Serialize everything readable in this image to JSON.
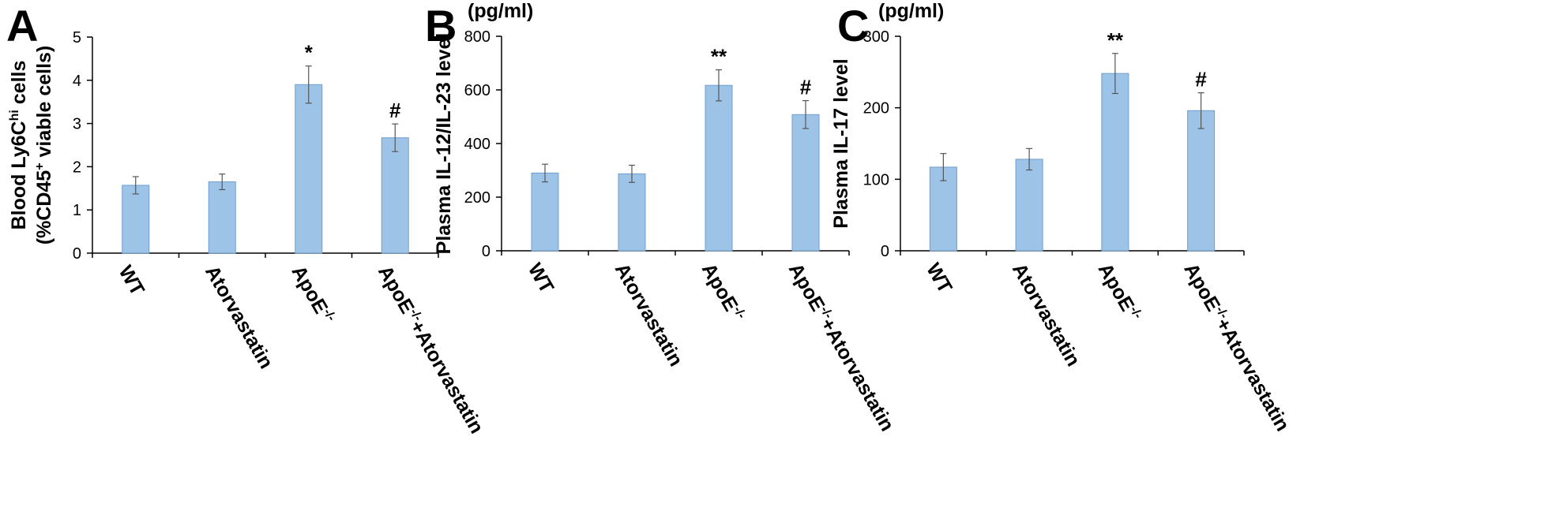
{
  "chart_data": [
    {
      "type": "bar",
      "panel": "A",
      "ylabel_line1": "Blood Ly6C",
      "ylabel_sup1": "hi",
      "ylabel_line1_end": " cells",
      "ylabel_line2": "(%CD45",
      "ylabel_sup2": "+",
      "ylabel_line2_end": " viable cells)",
      "unit": "",
      "ylim": [
        0,
        5
      ],
      "yticks": [
        "0",
        "1",
        "2",
        "3",
        "4",
        "5"
      ],
      "categories": [
        "WT",
        "Atorvastatin",
        "ApoE-/-",
        "ApoE-/-+Atorvastatin"
      ],
      "category_parts": [
        {
          "a": "WT",
          "s": "",
          "b": ""
        },
        {
          "a": "Atorvastatin",
          "s": "",
          "b": ""
        },
        {
          "a": "ApoE",
          "s": "-/-",
          "b": ""
        },
        {
          "a": "ApoE",
          "s": "-/-",
          "b": "+Atorvastatin"
        }
      ],
      "values": [
        1.57,
        1.65,
        3.9,
        2.67
      ],
      "errors": [
        0.2,
        0.18,
        0.43,
        0.32
      ],
      "significance": [
        "",
        "",
        "*",
        "#"
      ]
    },
    {
      "type": "bar",
      "panel": "B",
      "ylabel": "Plasma IL-12/IL-23 level",
      "unit": "(pg/ml)",
      "ylim": [
        0,
        800
      ],
      "yticks": [
        "0",
        "200",
        "400",
        "600",
        "800"
      ],
      "categories": [
        "WT",
        "Atorvastatin",
        "ApoE-/-",
        "ApoE-/-+Atorvastatin"
      ],
      "category_parts": [
        {
          "a": "WT",
          "s": "",
          "b": ""
        },
        {
          "a": "Atorvastatin",
          "s": "",
          "b": ""
        },
        {
          "a": "ApoE",
          "s": "-/-",
          "b": ""
        },
        {
          "a": "ApoE",
          "s": "-/-",
          "b": "+Atorvastatin"
        }
      ],
      "values": [
        290,
        287,
        617,
        508
      ],
      "errors": [
        33,
        32,
        58,
        52
      ],
      "significance": [
        "",
        "",
        "**",
        "#"
      ]
    },
    {
      "type": "bar",
      "panel": "C",
      "ylabel": "Plasma IL-17 level",
      "unit": "(pg/ml)",
      "ylim": [
        0,
        300
      ],
      "yticks": [
        "0",
        "100",
        "200",
        "300"
      ],
      "categories": [
        "WT",
        "Atorvastatin",
        "ApoE-/-",
        "ApoE-/-+Atorvastatin"
      ],
      "category_parts": [
        {
          "a": "WT",
          "s": "",
          "b": ""
        },
        {
          "a": "Atorvastatin",
          "s": "",
          "b": ""
        },
        {
          "a": "ApoE",
          "s": "-/-",
          "b": ""
        },
        {
          "a": "ApoE",
          "s": "-/-",
          "b": "+Atorvastatin"
        }
      ],
      "values": [
        117,
        128,
        248,
        196
      ],
      "errors": [
        19,
        15,
        28,
        25
      ],
      "significance": [
        "",
        "",
        "**",
        "#"
      ]
    }
  ],
  "colors": {
    "bar_fill": "#9DC3E6",
    "bar_edge": "#6F9FCF",
    "axis": "#000000"
  }
}
